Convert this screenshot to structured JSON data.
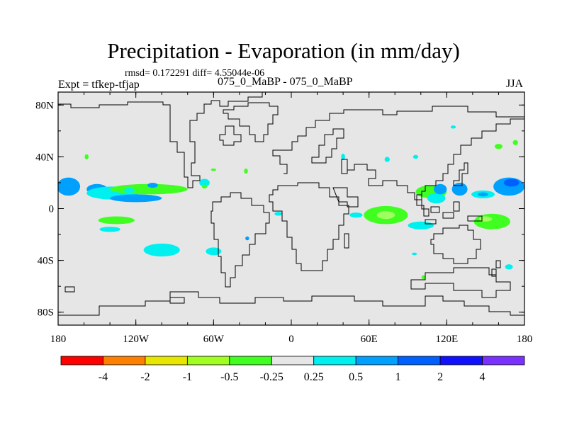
{
  "title": "Precipitation - Evaporation (in mm/day)",
  "stats": "rmsd= 0.172291 diff= 4.55044e-06",
  "expt": "Expt = tfkep-tfjap",
  "subtitle": "075_0_MaBP - 075_0_MaBP",
  "season": "JJA",
  "map": {
    "projection": "cylindrical-equidistant",
    "lon_range": [
      -180,
      180
    ],
    "lat_range": [
      -90,
      90
    ],
    "background_color": "#e6e6e6",
    "x_ticks": [
      {
        "value": -180,
        "label": "180"
      },
      {
        "value": -120,
        "label": "120W"
      },
      {
        "value": -60,
        "label": "60W"
      },
      {
        "value": 0,
        "label": "0"
      },
      {
        "value": 60,
        "label": "60E"
      },
      {
        "value": 120,
        "label": "120E"
      },
      {
        "value": 180,
        "label": "180"
      }
    ],
    "y_ticks": [
      {
        "value": 80,
        "label": "80N"
      },
      {
        "value": 40,
        "label": "40N"
      },
      {
        "value": 0,
        "label": "0"
      },
      {
        "value": -40,
        "label": "40S"
      },
      {
        "value": -80,
        "label": "80S"
      }
    ],
    "anomalies": [
      {
        "lon": -172,
        "lat": 17,
        "rx": 9,
        "ry": 7,
        "color": "#00a0ff"
      },
      {
        "lon": -150,
        "lat": 15,
        "rx": 8,
        "ry": 4,
        "color": "#00a0ff"
      },
      {
        "lon": -138,
        "lat": 12,
        "rx": 20,
        "ry": 5,
        "color": "#00f0f0"
      },
      {
        "lon": -110,
        "lat": 15,
        "rx": 30,
        "ry": 4,
        "color": "#40ff20"
      },
      {
        "lon": -120,
        "lat": 8,
        "rx": 20,
        "ry": 3,
        "color": "#00a0ff"
      },
      {
        "lon": -135,
        "lat": -9,
        "rx": 14,
        "ry": 3,
        "color": "#40ff20"
      },
      {
        "lon": -140,
        "lat": -16,
        "rx": 8,
        "ry": 2,
        "color": "#00f0f0"
      },
      {
        "lon": -100,
        "lat": -32,
        "rx": 14,
        "ry": 5,
        "color": "#00f0f0"
      },
      {
        "lon": -60,
        "lat": -33,
        "rx": 6,
        "ry": 3,
        "color": "#00f0f0"
      },
      {
        "lon": -34,
        "lat": -23,
        "rx": 1.5,
        "ry": 1.5,
        "color": "#00a0ff"
      },
      {
        "lon": -158,
        "lat": 40,
        "rx": 1.5,
        "ry": 2,
        "color": "#40ff20"
      },
      {
        "lon": -107,
        "lat": 18,
        "rx": 4,
        "ry": 2,
        "color": "#00a0ff"
      },
      {
        "lon": -67,
        "lat": 20,
        "rx": 4,
        "ry": 3,
        "color": "#00f0f0"
      },
      {
        "lon": -67,
        "lat": 17,
        "rx": 2,
        "ry": 1.5,
        "color": "#40ff20"
      },
      {
        "lon": -10,
        "lat": -4,
        "rx": 3,
        "ry": 1.5,
        "color": "#00f0f0"
      },
      {
        "lon": -125,
        "lat": 14,
        "rx": 4,
        "ry": 2,
        "color": "#00f0f0"
      },
      {
        "lon": 73,
        "lat": -5,
        "rx": 17,
        "ry": 7,
        "color": "#40ff20"
      },
      {
        "lon": 73,
        "lat": -5,
        "rx": 7,
        "ry": 3,
        "color": "#a0ff60"
      },
      {
        "lon": 108,
        "lat": 13,
        "rx": 12,
        "ry": 5,
        "color": "#40ff20"
      },
      {
        "lon": 112,
        "lat": 8,
        "rx": 7,
        "ry": 4,
        "color": "#00f0f0"
      },
      {
        "lon": 115,
        "lat": 15,
        "rx": 5,
        "ry": 4,
        "color": "#00a0ff"
      },
      {
        "lon": 130,
        "lat": 15,
        "rx": 6,
        "ry": 5,
        "color": "#00a0ff"
      },
      {
        "lon": 148,
        "lat": 11,
        "rx": 9,
        "ry": 3,
        "color": "#00f0f0"
      },
      {
        "lon": 148,
        "lat": 11,
        "rx": 4,
        "ry": 1.5,
        "color": "#00a0ff"
      },
      {
        "lon": 168,
        "lat": 17,
        "rx": 12,
        "ry": 7,
        "color": "#00a0ff"
      },
      {
        "lon": 170,
        "lat": 20,
        "rx": 6,
        "ry": 3,
        "color": "#0060ff"
      },
      {
        "lon": 155,
        "lat": -10,
        "rx": 14,
        "ry": 6,
        "color": "#40ff20"
      },
      {
        "lon": 150,
        "lat": -8,
        "rx": 5,
        "ry": 2,
        "color": "#a0ff60"
      },
      {
        "lon": 100,
        "lat": -13,
        "rx": 10,
        "ry": 3,
        "color": "#00f0f0"
      },
      {
        "lon": 50,
        "lat": -5,
        "rx": 5,
        "ry": 2,
        "color": "#00f0f0"
      },
      {
        "lon": 40,
        "lat": 40,
        "rx": 1.5,
        "ry": 2.5,
        "color": "#00f0f0"
      },
      {
        "lon": 74,
        "lat": 38,
        "rx": 2,
        "ry": 2,
        "color": "#00f0f0"
      },
      {
        "lon": 96,
        "lat": 40,
        "rx": 2,
        "ry": 1.5,
        "color": "#00f0f0"
      },
      {
        "lon": 160,
        "lat": 48,
        "rx": 3,
        "ry": 2,
        "color": "#40ff20"
      },
      {
        "lon": 173,
        "lat": 51,
        "rx": 2,
        "ry": 2,
        "color": "#40ff20"
      },
      {
        "lon": 125,
        "lat": 63,
        "rx": 2,
        "ry": 1.2,
        "color": "#00f0f0"
      },
      {
        "lon": -60,
        "lat": 30,
        "rx": 2,
        "ry": 1,
        "color": "#40ff20"
      },
      {
        "lon": -35,
        "lat": 29,
        "rx": 1.5,
        "ry": 2,
        "color": "#40ff20"
      },
      {
        "lon": 95,
        "lat": -35,
        "rx": 2,
        "ry": 1,
        "color": "#00f0f0"
      },
      {
        "lon": 102,
        "lat": -53,
        "rx": 1.5,
        "ry": 1.5,
        "color": "#40ff20"
      },
      {
        "lon": 168,
        "lat": -45,
        "rx": 3,
        "ry": 2,
        "color": "#00f0f0"
      }
    ]
  },
  "colorbar": {
    "colors": [
      "#ff0000",
      "#ff8000",
      "#e6e600",
      "#a0ff20",
      "#40ff20",
      "#e6e6e6",
      "#00f0f0",
      "#00a0ff",
      "#0060ff",
      "#1010ff",
      "#7a30ff"
    ],
    "labels": [
      "-4",
      "-2",
      "-1",
      "-0.5",
      "-0.25",
      "0.25",
      "0.5",
      "1",
      "2",
      "4"
    ]
  }
}
